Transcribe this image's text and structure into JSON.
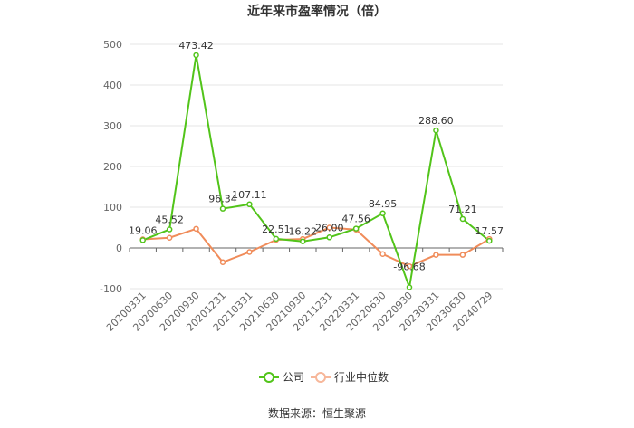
{
  "chart_data": {
    "type": "line",
    "title": "近年来市盈率情况（倍）",
    "categories": [
      "20200331",
      "20200630",
      "20200930",
      "20201231",
      "20210331",
      "20210630",
      "20210930",
      "20211231",
      "20220331",
      "20220630",
      "20220930",
      "20230331",
      "20230630",
      "20240729"
    ],
    "series": [
      {
        "name": "公司",
        "color": "#52c41a",
        "values": [
          19.06,
          45.52,
          473.42,
          96.34,
          107.11,
          22.51,
          16.22,
          26.0,
          47.56,
          84.95,
          -96.68,
          288.6,
          71.21,
          17.57
        ],
        "labels": [
          "19.06",
          "45.52",
          "473.42",
          "96.34",
          "107.11",
          "22.51",
          "16.22",
          "26.00",
          "47.56",
          "84.95",
          "-96.68",
          "288.60",
          "71.21",
          "17.57"
        ]
      },
      {
        "name": "行业中位数",
        "color": "#f08c5a",
        "values": [
          21,
          25,
          47,
          -35,
          -10,
          20,
          22,
          50,
          45,
          -15,
          -45,
          -17,
          -17,
          22
        ]
      }
    ],
    "yticks": [
      -100,
      0,
      100,
      200,
      300,
      400,
      500
    ],
    "ylim": [
      -100,
      500
    ],
    "grid": true,
    "legend_position": "bottom"
  },
  "source": "数据来源：恒生聚源"
}
